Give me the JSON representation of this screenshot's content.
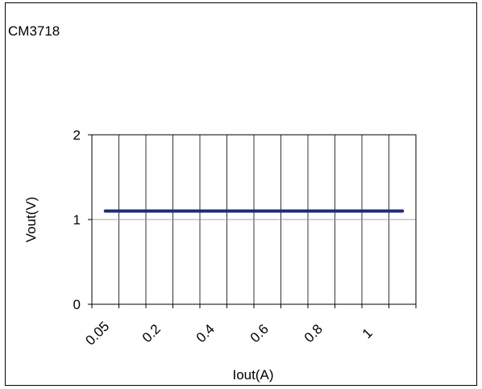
{
  "chart_data": {
    "type": "line",
    "title": "CM3718",
    "xlabel": "Iout(A)",
    "ylabel": "Vout(V)",
    "x_tick_labels": [
      "0.05",
      "0.2",
      "0.4",
      "0.6",
      "0.8",
      "1"
    ],
    "y_tick_labels": [
      "0",
      "1",
      "2"
    ],
    "ylim": [
      0,
      2
    ],
    "x": [
      0.05,
      0.2,
      0.4,
      0.6,
      0.8,
      1.0,
      1.15
    ],
    "series": [
      {
        "values": [
          1.1,
          1.1,
          1.1,
          1.1,
          1.1,
          1.1,
          1.1
        ]
      }
    ],
    "grid": true,
    "legend": "none",
    "colors": {
      "line": "#1f2a7a",
      "axis": "#000000",
      "grid": "#000000"
    }
  }
}
